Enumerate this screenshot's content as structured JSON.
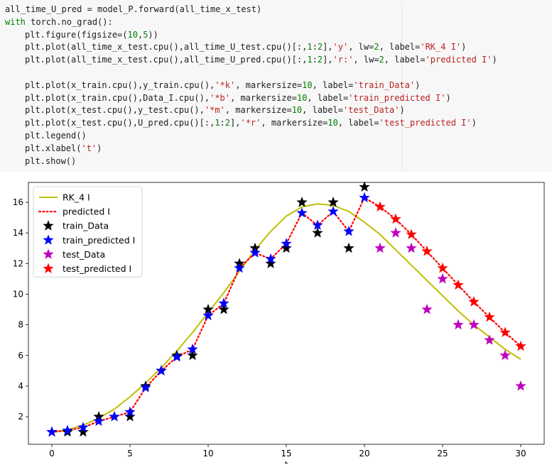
{
  "code": {
    "lines": [
      {
        "indent": 0,
        "parts": [
          {
            "t": "all_time_U_pred = model_P.forward(all_time_x_test)",
            "c": "plain"
          }
        ]
      },
      {
        "indent": 0,
        "parts": [
          {
            "t": "with",
            "c": "kw"
          },
          {
            "t": " torch.no_grad():",
            "c": "plain"
          }
        ]
      },
      {
        "indent": 1,
        "parts": [
          {
            "t": "plt.figure(figsize=(",
            "c": "plain"
          },
          {
            "t": "10",
            "c": "num"
          },
          {
            "t": ",",
            "c": "plain"
          },
          {
            "t": "5",
            "c": "num"
          },
          {
            "t": "))",
            "c": "plain"
          }
        ]
      },
      {
        "indent": 1,
        "parts": [
          {
            "t": "plt.plot(all_time_x_test.cpu(),all_time_U_test.cpu()[:,",
            "c": "plain"
          },
          {
            "t": "1",
            "c": "num"
          },
          {
            "t": ":",
            "c": "plain"
          },
          {
            "t": "2",
            "c": "num"
          },
          {
            "t": "],",
            "c": "plain"
          },
          {
            "t": "'y'",
            "c": "str"
          },
          {
            "t": ", lw=",
            "c": "plain"
          },
          {
            "t": "2",
            "c": "num"
          },
          {
            "t": ", label=",
            "c": "plain"
          },
          {
            "t": "'RK_4 I'",
            "c": "str"
          },
          {
            "t": ")",
            "c": "plain"
          }
        ]
      },
      {
        "indent": 1,
        "parts": [
          {
            "t": "plt.plot(all_time_x_test.cpu(),all_time_U_pred.cpu()[:,",
            "c": "plain"
          },
          {
            "t": "1",
            "c": "num"
          },
          {
            "t": ":",
            "c": "plain"
          },
          {
            "t": "2",
            "c": "num"
          },
          {
            "t": "],",
            "c": "plain"
          },
          {
            "t": "'r:'",
            "c": "str"
          },
          {
            "t": ", lw=",
            "c": "plain"
          },
          {
            "t": "2",
            "c": "num"
          },
          {
            "t": ", label=",
            "c": "plain"
          },
          {
            "t": "'predicted I'",
            "c": "str"
          },
          {
            "t": ")",
            "c": "plain"
          }
        ]
      },
      {
        "indent": 0,
        "parts": [
          {
            "t": "",
            "c": "plain"
          }
        ]
      },
      {
        "indent": 1,
        "parts": [
          {
            "t": "plt.plot(x_train.cpu(),y_train.cpu(),",
            "c": "plain"
          },
          {
            "t": "'*k'",
            "c": "str"
          },
          {
            "t": ", markersize=",
            "c": "plain"
          },
          {
            "t": "10",
            "c": "num"
          },
          {
            "t": ", label=",
            "c": "plain"
          },
          {
            "t": "'train_Data'",
            "c": "str"
          },
          {
            "t": ")",
            "c": "plain"
          }
        ]
      },
      {
        "indent": 1,
        "parts": [
          {
            "t": "plt.plot(x_train.cpu(),Data_I.cpu(),",
            "c": "plain"
          },
          {
            "t": "'*b'",
            "c": "str"
          },
          {
            "t": ", markersize=",
            "c": "plain"
          },
          {
            "t": "10",
            "c": "num"
          },
          {
            "t": ", label=",
            "c": "plain"
          },
          {
            "t": "'train_predicted I'",
            "c": "str"
          },
          {
            "t": ")",
            "c": "plain"
          }
        ]
      },
      {
        "indent": 1,
        "parts": [
          {
            "t": "plt.plot(x_test.cpu(),y_test.cpu(),",
            "c": "plain"
          },
          {
            "t": "'*m'",
            "c": "str"
          },
          {
            "t": ", markersize=",
            "c": "plain"
          },
          {
            "t": "10",
            "c": "num"
          },
          {
            "t": ", label=",
            "c": "plain"
          },
          {
            "t": "'test_Data'",
            "c": "str"
          },
          {
            "t": ")",
            "c": "plain"
          }
        ]
      },
      {
        "indent": 1,
        "parts": [
          {
            "t": "plt.plot(x_test.cpu(),U_pred.cpu()[:,",
            "c": "plain"
          },
          {
            "t": "1",
            "c": "num"
          },
          {
            "t": ":",
            "c": "plain"
          },
          {
            "t": "2",
            "c": "num"
          },
          {
            "t": "],",
            "c": "plain"
          },
          {
            "t": "'*r'",
            "c": "str"
          },
          {
            "t": ", markersize=",
            "c": "plain"
          },
          {
            "t": "10",
            "c": "num"
          },
          {
            "t": ", label=",
            "c": "plain"
          },
          {
            "t": "'test_predicted I'",
            "c": "str"
          },
          {
            "t": ")",
            "c": "plain"
          }
        ]
      },
      {
        "indent": 1,
        "parts": [
          {
            "t": "plt.legend()",
            "c": "plain"
          }
        ]
      },
      {
        "indent": 1,
        "parts": [
          {
            "t": "plt.xlabel(",
            "c": "plain"
          },
          {
            "t": "'t'",
            "c": "str"
          },
          {
            "t": ")",
            "c": "plain"
          }
        ]
      },
      {
        "indent": 1,
        "parts": [
          {
            "t": "plt.show()",
            "c": "plain"
          }
        ]
      }
    ]
  },
  "chart_data": {
    "type": "line",
    "xlabel": "t",
    "ylabel": "",
    "xlim": [
      -1.5,
      31.5
    ],
    "ylim": [
      0.2,
      17.3
    ],
    "xticks": [
      0,
      5,
      10,
      15,
      20,
      25,
      30
    ],
    "yticks": [
      2,
      4,
      6,
      8,
      10,
      12,
      14,
      16
    ],
    "legend_position": "top-left",
    "grid": false,
    "series": [
      {
        "name": "RK_4 I",
        "kind": "line",
        "style": "solid",
        "color": "#bfbf00",
        "x": [
          0,
          1,
          2,
          3,
          4,
          5,
          6,
          7,
          8,
          9,
          10,
          11,
          12,
          13,
          14,
          15,
          16,
          17,
          18,
          19,
          20,
          21,
          22,
          23,
          24,
          25,
          26,
          27,
          28,
          29,
          30
        ],
        "y": [
          1.0,
          1.15,
          1.45,
          1.9,
          2.5,
          3.3,
          4.2,
          5.2,
          6.3,
          7.5,
          8.8,
          10.1,
          11.5,
          12.9,
          14.1,
          15.1,
          15.7,
          15.9,
          15.8,
          15.4,
          14.7,
          13.9,
          12.9,
          11.9,
          10.9,
          9.9,
          8.9,
          8.0,
          7.2,
          6.4,
          5.75
        ]
      },
      {
        "name": "predicted I",
        "kind": "line",
        "style": "dotted",
        "color": "#ff0000",
        "x": [
          0,
          1,
          2,
          3,
          4,
          5,
          6,
          7,
          8,
          9,
          10,
          11,
          12,
          13,
          14,
          15,
          16,
          17,
          18,
          19,
          20,
          21,
          22,
          23,
          24,
          25,
          26,
          27,
          28,
          29,
          30
        ],
        "y": [
          1.0,
          1.1,
          1.3,
          1.7,
          2.0,
          2.3,
          3.9,
          5.0,
          5.9,
          6.4,
          8.6,
          9.4,
          11.7,
          12.7,
          12.3,
          13.3,
          15.3,
          14.5,
          15.4,
          14.1,
          16.3,
          15.7,
          14.9,
          13.9,
          12.8,
          11.7,
          10.6,
          9.5,
          8.5,
          7.5,
          6.6
        ]
      },
      {
        "name": "train_Data",
        "kind": "markers",
        "marker": "star",
        "color": "#000000",
        "x": [
          0,
          1,
          2,
          3,
          4,
          5,
          6,
          7,
          8,
          9,
          10,
          11,
          12,
          13,
          14,
          15,
          16,
          17,
          18,
          19,
          20
        ],
        "y": [
          1,
          1,
          1,
          2,
          2,
          2,
          4,
          5,
          6,
          6,
          9,
          9,
          12,
          13,
          12,
          13,
          16,
          14,
          16,
          13,
          17
        ]
      },
      {
        "name": "train_predicted I",
        "kind": "markers",
        "marker": "star",
        "color": "#0000ff",
        "x": [
          0,
          1,
          2,
          3,
          4,
          5,
          6,
          7,
          8,
          9,
          10,
          11,
          12,
          13,
          14,
          15,
          16,
          17,
          18,
          19,
          20
        ],
        "y": [
          1.0,
          1.1,
          1.3,
          1.7,
          2.0,
          2.3,
          3.9,
          5.0,
          5.9,
          6.4,
          8.6,
          9.4,
          11.7,
          12.7,
          12.3,
          13.3,
          15.3,
          14.5,
          15.4,
          14.1,
          16.3
        ]
      },
      {
        "name": "test_Data",
        "kind": "markers",
        "marker": "star",
        "color": "#bf00bf",
        "x": [
          21,
          22,
          23,
          24,
          25,
          26,
          27,
          28,
          29,
          30
        ],
        "y": [
          13,
          14,
          13,
          9,
          11,
          8,
          8,
          7,
          6,
          4
        ]
      },
      {
        "name": "test_predicted I",
        "kind": "markers",
        "marker": "star",
        "color": "#ff0000",
        "x": [
          21,
          22,
          23,
          24,
          25,
          26,
          27,
          28,
          29,
          30
        ],
        "y": [
          15.7,
          14.9,
          13.9,
          12.8,
          11.7,
          10.6,
          9.5,
          8.5,
          7.5,
          6.6
        ]
      }
    ]
  }
}
